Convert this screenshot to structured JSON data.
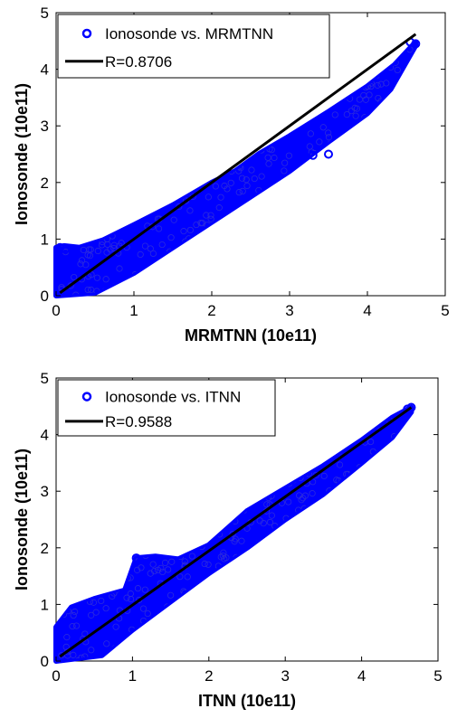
{
  "chart_data": [
    {
      "type": "scatter",
      "xlabel": "MRMTNN (10e11)",
      "ylabel": "Ionosonde (10e11)",
      "xlim": [
        0,
        5
      ],
      "ylim": [
        0,
        5
      ],
      "xticks": [
        "0",
        "1",
        "2",
        "3",
        "4",
        "5"
      ],
      "yticks": [
        "0",
        "1",
        "2",
        "3",
        "4",
        "5"
      ],
      "grid": false,
      "legend_position": "top-left",
      "series": [
        {
          "name": "Ionosonde vs. MRMTNN",
          "kind": "scatter",
          "color": "#0000ff",
          "envelope_upper": [
            [
              0.0,
              0.85
            ],
            [
              0.1,
              0.88
            ],
            [
              0.3,
              0.85
            ],
            [
              0.6,
              0.98
            ],
            [
              1.0,
              1.25
            ],
            [
              1.5,
              1.6
            ],
            [
              2.0,
              2.0
            ],
            [
              2.3,
              2.2
            ],
            [
              2.6,
              2.5
            ],
            [
              3.0,
              2.82
            ],
            [
              3.5,
              3.25
            ],
            [
              4.0,
              3.7
            ],
            [
              4.35,
              4.08
            ],
            [
              4.62,
              4.48
            ]
          ],
          "envelope_lower": [
            [
              0.0,
              0.0
            ],
            [
              0.5,
              0.05
            ],
            [
              1.0,
              0.4
            ],
            [
              1.5,
              0.85
            ],
            [
              2.0,
              1.3
            ],
            [
              2.5,
              1.75
            ],
            [
              3.0,
              2.2
            ],
            [
              3.5,
              2.72
            ],
            [
              4.0,
              3.22
            ],
            [
              4.3,
              3.65
            ],
            [
              4.62,
              4.42
            ]
          ],
          "points": [
            [
              4.55,
              4.48
            ],
            [
              4.62,
              4.45
            ],
            [
              3.5,
              2.5
            ],
            [
              3.3,
              2.48
            ],
            [
              0.05,
              0.85
            ],
            [
              0.12,
              0.82
            ]
          ]
        },
        {
          "name": "R=0.8706",
          "kind": "line",
          "color": "#000000",
          "x": [
            0.05,
            4.62
          ],
          "y": [
            0.05,
            4.62
          ]
        }
      ]
    },
    {
      "type": "scatter",
      "xlabel": "ITNN (10e11)",
      "ylabel": "Ionosonde (10e11)",
      "xlim": [
        0,
        5
      ],
      "ylim": [
        0,
        5
      ],
      "xticks": [
        "0",
        "1",
        "2",
        "3",
        "4",
        "5"
      ],
      "yticks": [
        "0",
        "1",
        "2",
        "3",
        "4",
        "5"
      ],
      "grid": false,
      "legend_position": "top-left",
      "series": [
        {
          "name": "Ionosonde vs. ITNN",
          "kind": "scatter",
          "color": "#0000ff",
          "envelope_upper": [
            [
              0.0,
              0.6
            ],
            [
              0.2,
              0.95
            ],
            [
              0.5,
              1.1
            ],
            [
              0.9,
              1.25
            ],
            [
              1.05,
              1.82
            ],
            [
              1.3,
              1.85
            ],
            [
              1.6,
              1.8
            ],
            [
              2.0,
              2.05
            ],
            [
              2.5,
              2.65
            ],
            [
              3.0,
              3.05
            ],
            [
              3.5,
              3.45
            ],
            [
              4.0,
              3.9
            ],
            [
              4.4,
              4.3
            ],
            [
              4.65,
              4.48
            ]
          ],
          "envelope_lower": [
            [
              0.0,
              0.0
            ],
            [
              0.6,
              0.1
            ],
            [
              1.0,
              0.55
            ],
            [
              1.5,
              1.05
            ],
            [
              2.0,
              1.55
            ],
            [
              2.5,
              2.0
            ],
            [
              3.0,
              2.5
            ],
            [
              3.5,
              2.95
            ],
            [
              4.0,
              3.5
            ],
            [
              4.4,
              3.95
            ],
            [
              4.65,
              4.4
            ]
          ],
          "points": [
            [
              4.6,
              4.45
            ],
            [
              4.65,
              4.48
            ],
            [
              1.05,
              1.82
            ]
          ]
        },
        {
          "name": "R=0.9588",
          "kind": "line",
          "color": "#000000",
          "x": [
            0.05,
            4.65
          ],
          "y": [
            0.08,
            4.48
          ]
        }
      ]
    }
  ]
}
